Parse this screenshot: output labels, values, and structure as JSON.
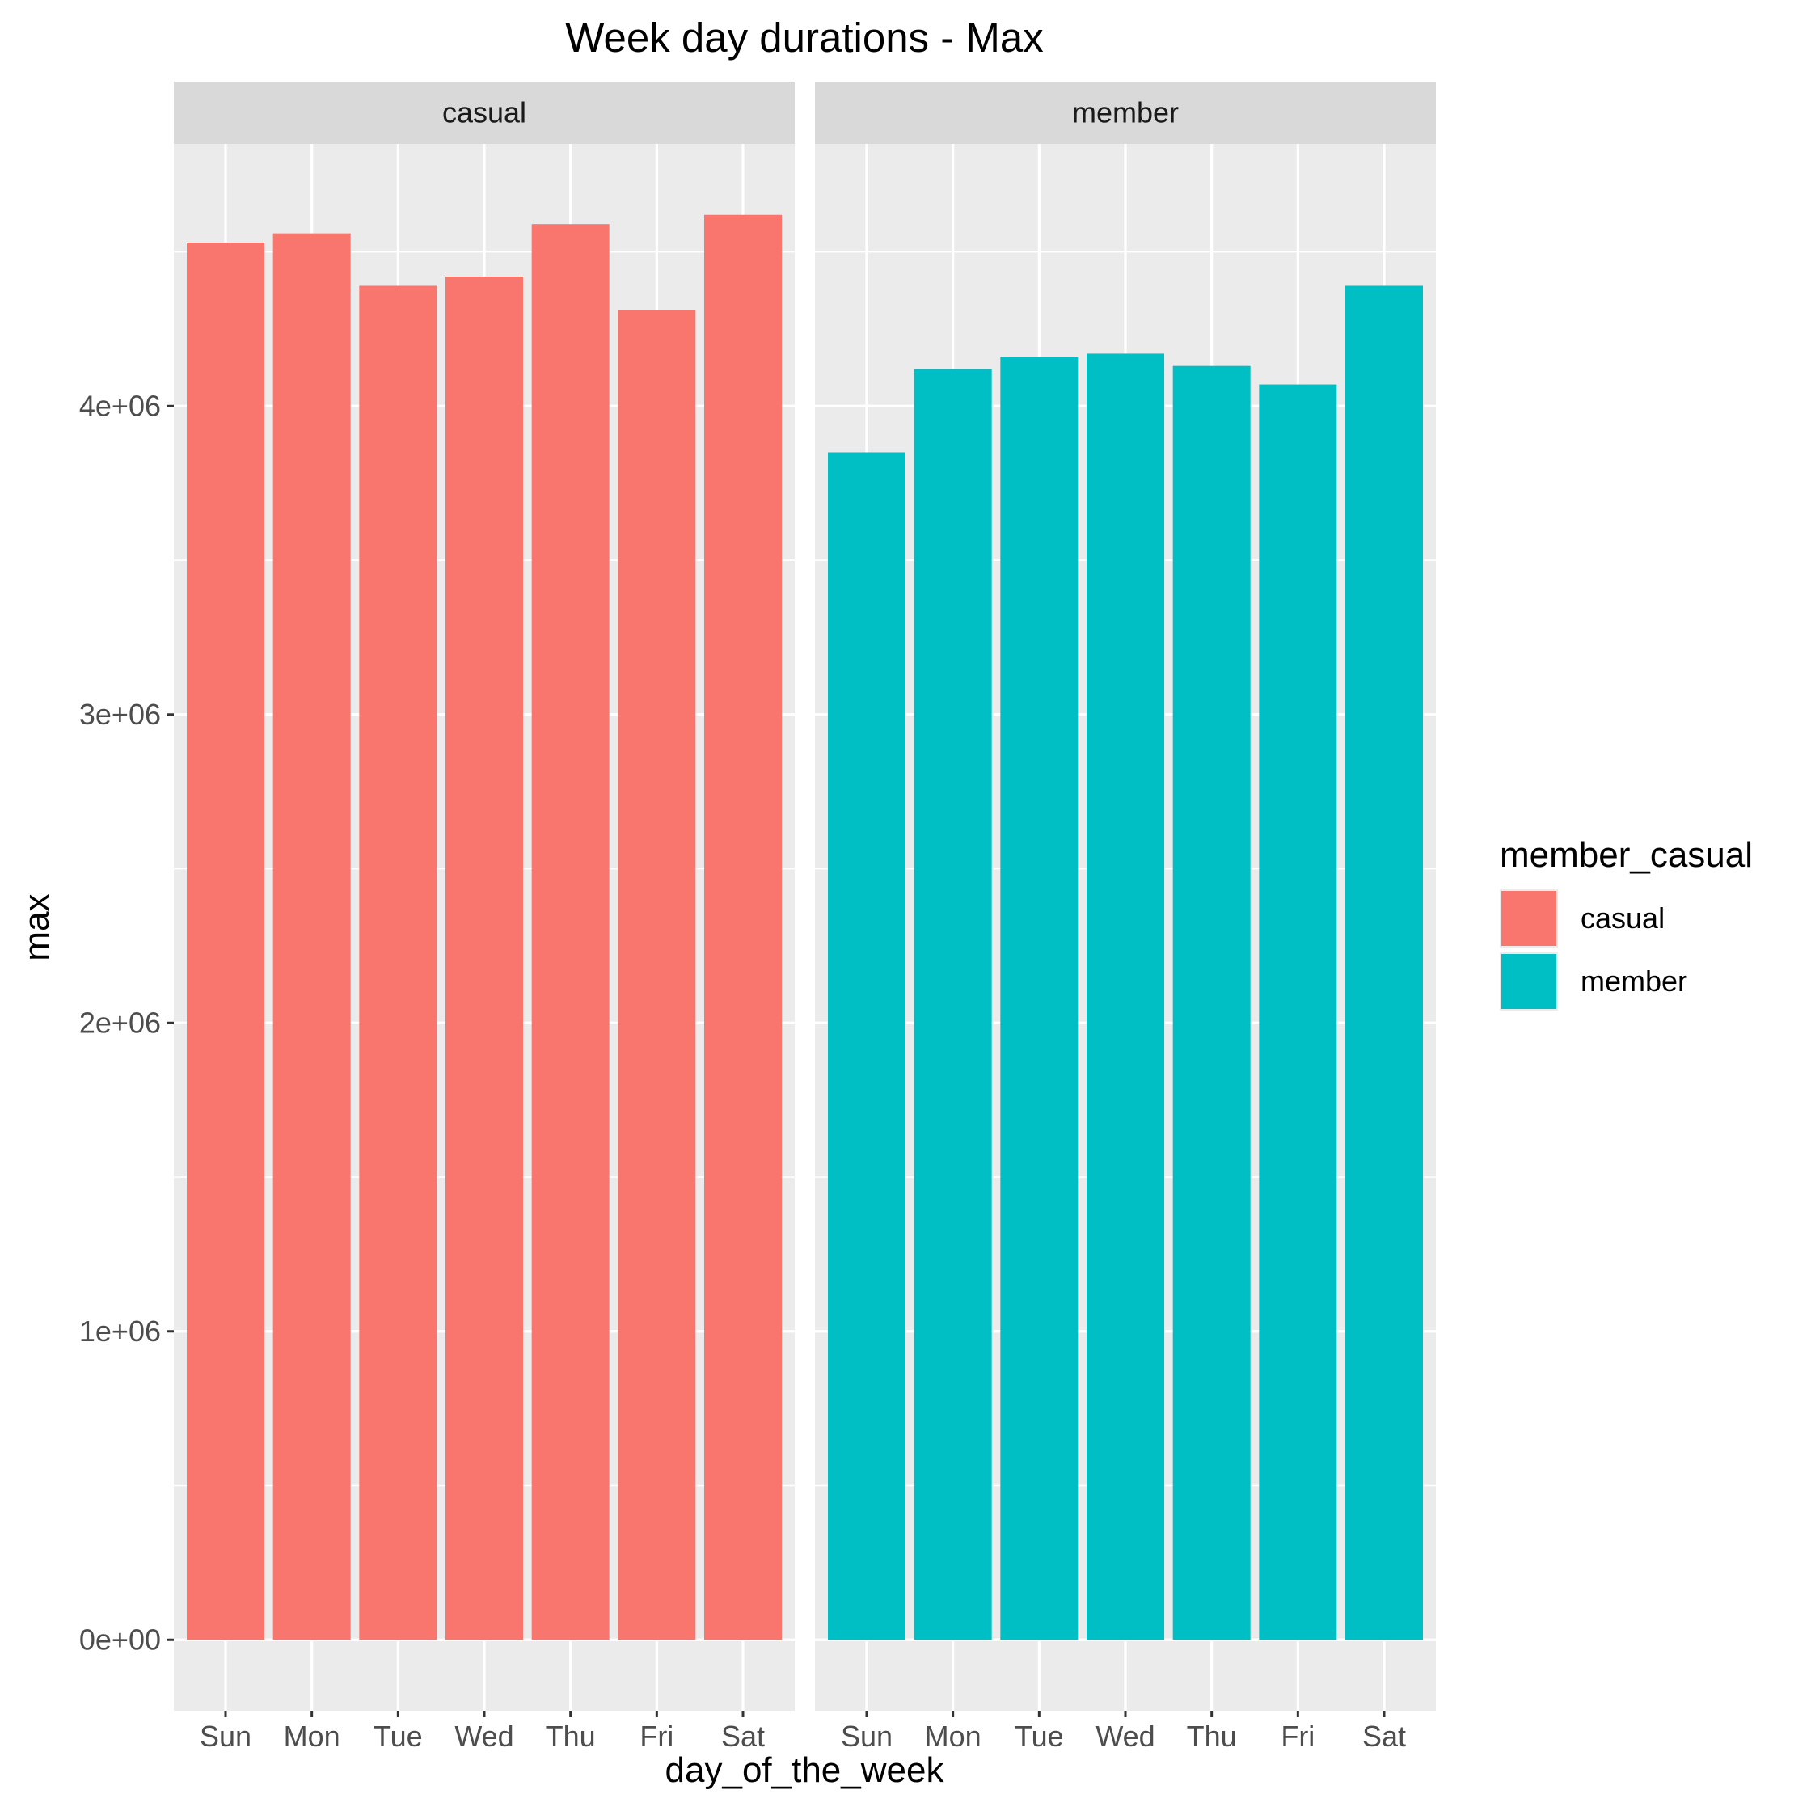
{
  "chart_data": {
    "type": "bar",
    "title": "Week day durations - Max",
    "xlabel": "day_of_the_week",
    "ylabel": "max",
    "categories": [
      "Sun",
      "Mon",
      "Tue",
      "Wed",
      "Thu",
      "Fri",
      "Sat"
    ],
    "facets": [
      "casual",
      "member"
    ],
    "series": [
      {
        "name": "casual",
        "color": "#F8766D",
        "values": [
          4530000,
          4560000,
          4390000,
          4420000,
          4590000,
          4310000,
          4620000
        ]
      },
      {
        "name": "member",
        "color": "#00BFC4",
        "values": [
          3850000,
          4120000,
          4160000,
          4170000,
          4130000,
          4070000,
          4390000
        ]
      }
    ],
    "yticks": [
      {
        "value": 0,
        "label": "0e+00"
      },
      {
        "value": 1000000,
        "label": "1e+06"
      },
      {
        "value": 2000000,
        "label": "2e+06"
      },
      {
        "value": 3000000,
        "label": "3e+06"
      },
      {
        "value": 4000000,
        "label": "4e+06"
      }
    ],
    "ylim": [
      -230000,
      4850000
    ],
    "legend": {
      "title": "member_casual",
      "position": "right"
    },
    "grid": true
  }
}
